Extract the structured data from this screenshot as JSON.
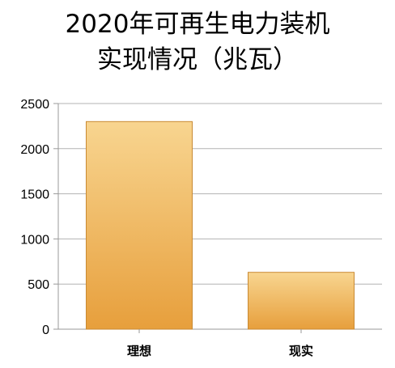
{
  "chart_data": {
    "type": "bar",
    "title_lines": [
      "2020年可再生电力装机",
      "实现情况（兆瓦）"
    ],
    "categories": [
      "理想",
      "现实"
    ],
    "values": [
      2300,
      630
    ],
    "ylim": [
      0,
      2500
    ],
    "yticks": [
      0,
      500,
      1000,
      1500,
      2000,
      2500
    ],
    "grid": true,
    "legend": "none",
    "bar_color_top": "#f8d590",
    "bar_color_bottom": "#e79f3c",
    "bar_edge_color": "#c98a33"
  }
}
